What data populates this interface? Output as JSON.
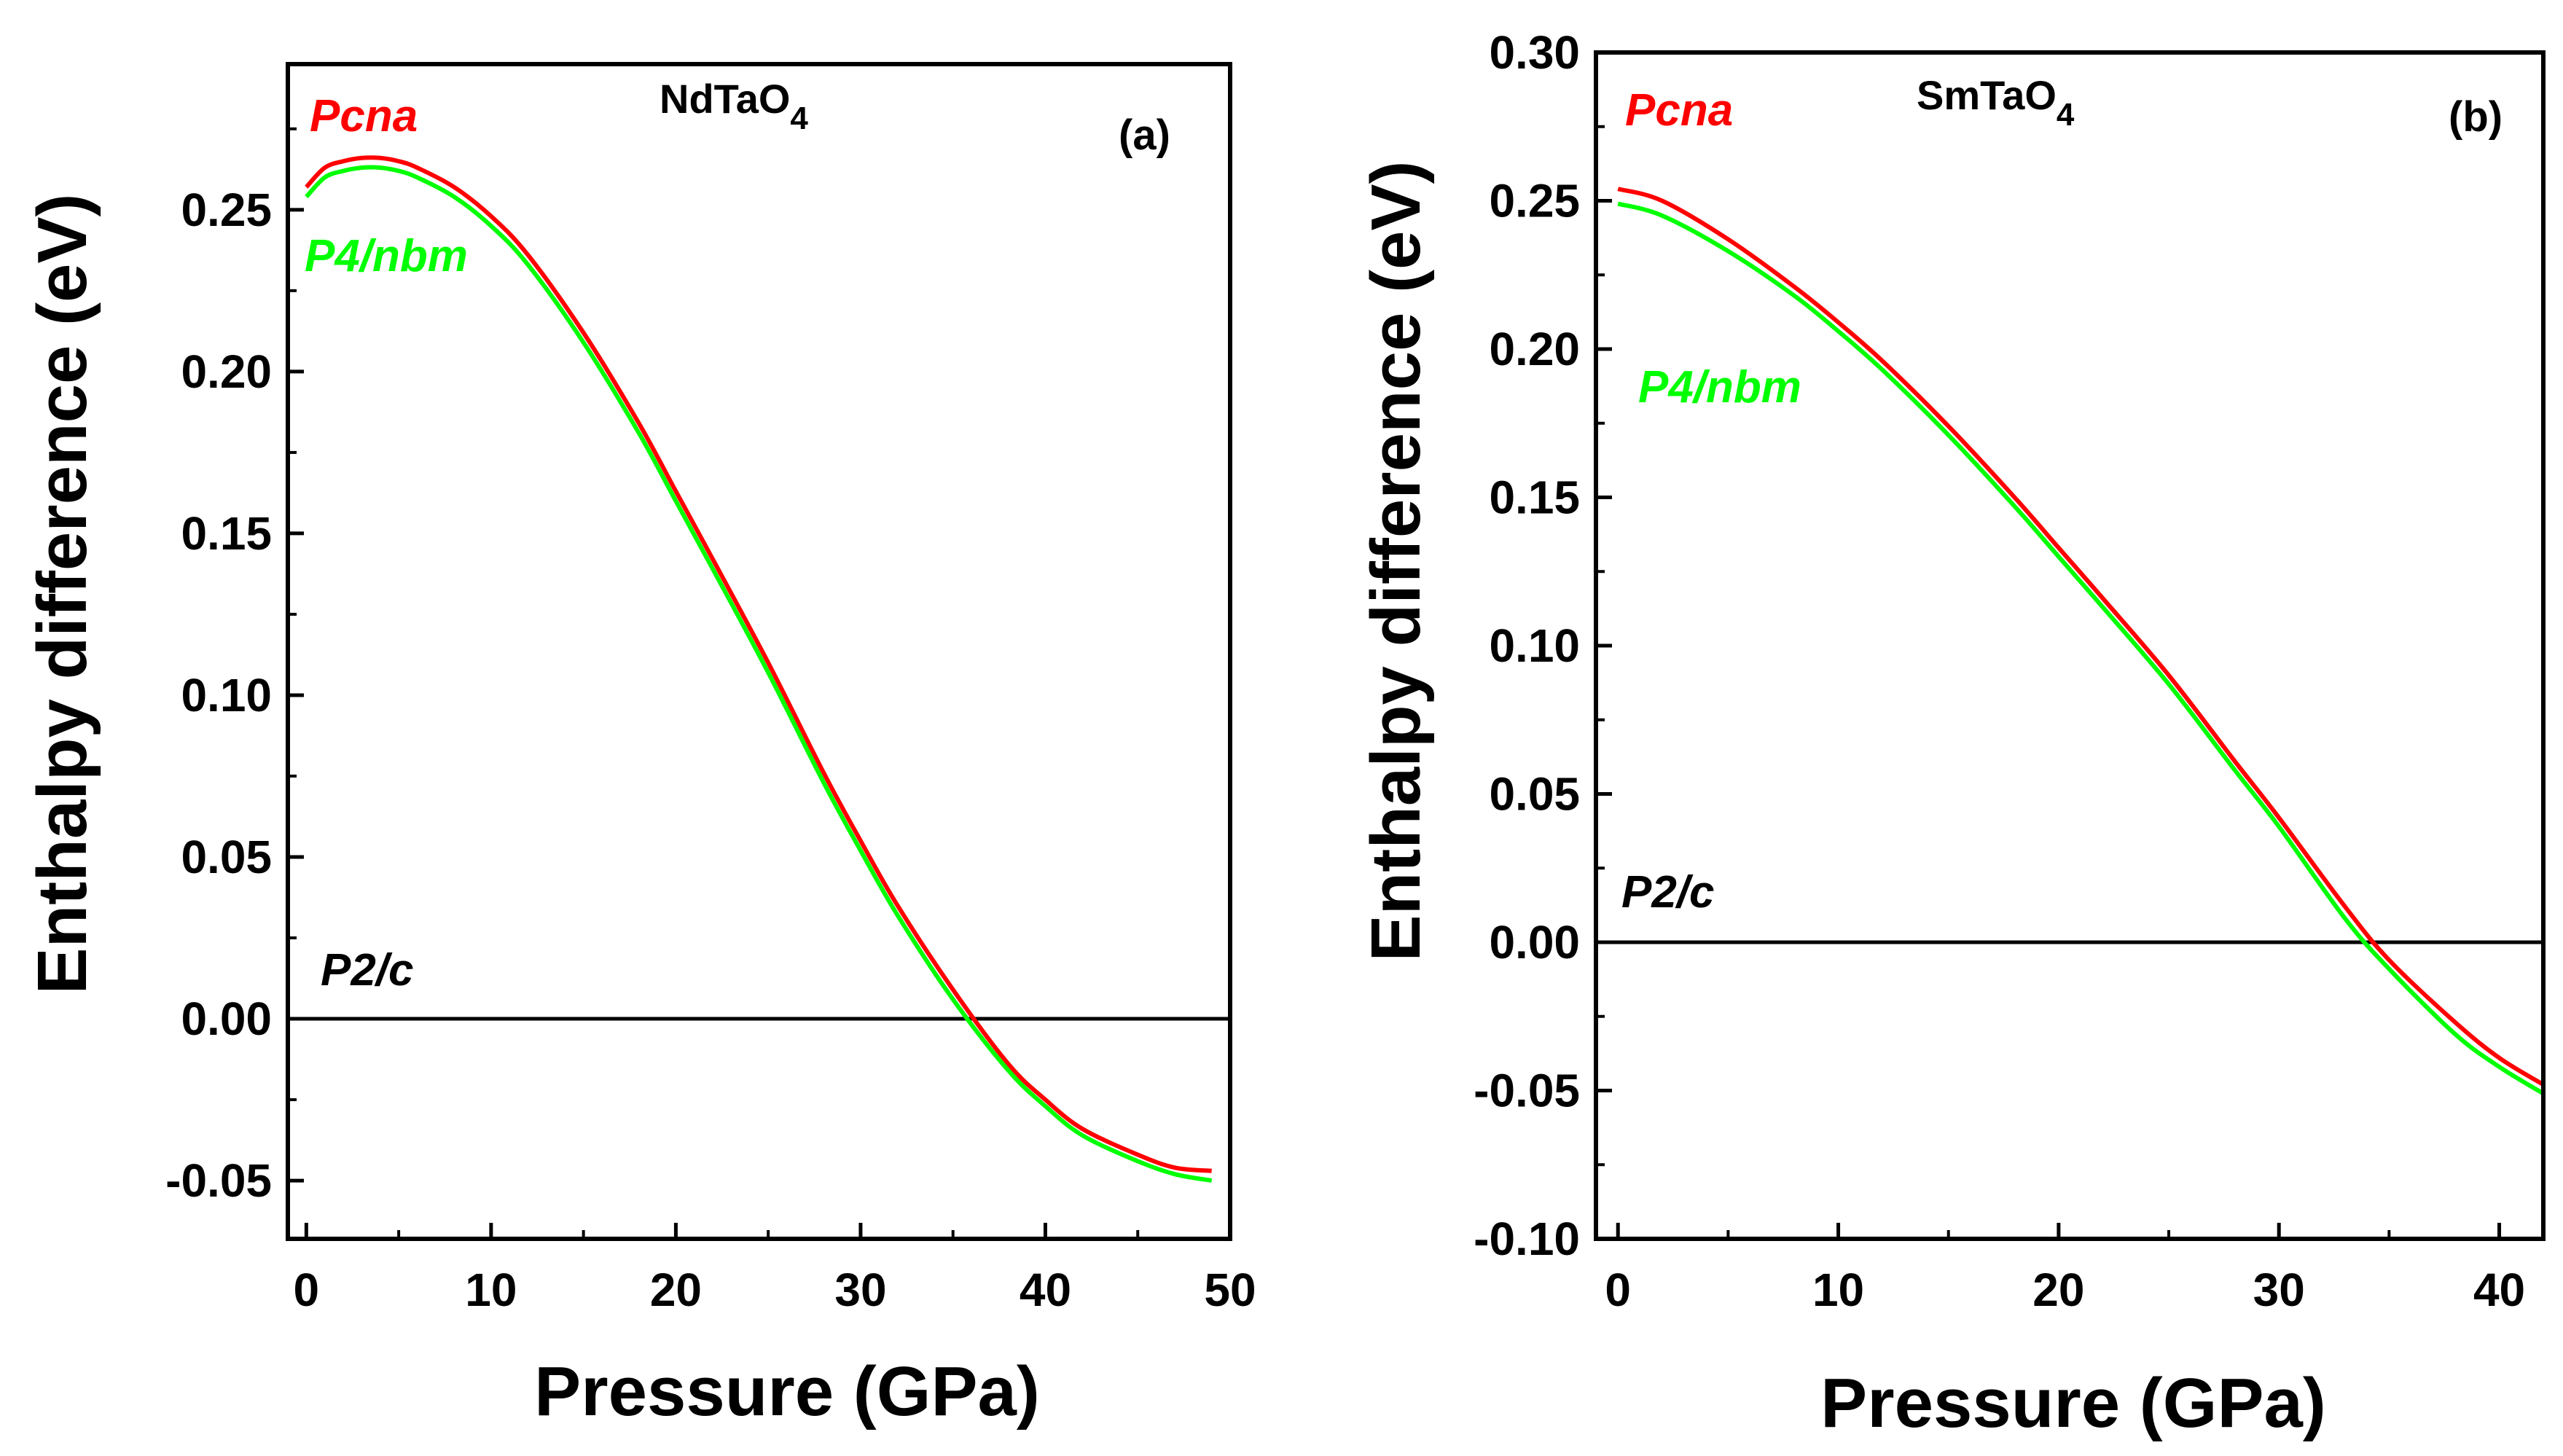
{
  "figure": {
    "description_label": ""
  },
  "chart_data": [
    {
      "type": "line",
      "panel_label": "(a)",
      "compound": "NdTaO",
      "compound_subscript": "4",
      "xlabel": "Pressure (GPa)",
      "ylabel": "Enthalpy difference (eV)",
      "xlim": [
        -1,
        50
      ],
      "ylim": [
        -0.068,
        0.295
      ],
      "xticks": [
        0,
        10,
        20,
        30,
        40,
        50
      ],
      "yticks": [
        -0.05,
        0.0,
        0.05,
        0.1,
        0.15,
        0.2,
        0.25
      ],
      "ytick_labels": [
        "-0.05",
        "0.00",
        "0.05",
        "0.10",
        "0.15",
        "0.20",
        "0.25"
      ],
      "reference_label": "P2/c",
      "series": [
        {
          "name": "Pcna",
          "color": "#ff0000",
          "x": [
            0,
            1,
            2,
            3,
            4,
            5,
            6,
            8,
            10,
            12,
            15,
            18,
            20,
            22,
            25,
            28,
            30,
            32,
            35,
            38,
            40,
            42,
            45,
            47,
            49
          ],
          "y": [
            0.257,
            0.263,
            0.265,
            0.266,
            0.266,
            0.265,
            0.263,
            0.257,
            0.248,
            0.236,
            0.212,
            0.184,
            0.163,
            0.142,
            0.11,
            0.076,
            0.055,
            0.035,
            0.009,
            -0.014,
            -0.025,
            -0.034,
            -0.042,
            -0.046,
            -0.047
          ]
        },
        {
          "name": "P4/nbm",
          "color": "#00ff00",
          "x": [
            0,
            1,
            2,
            3,
            4,
            5,
            6,
            8,
            10,
            12,
            15,
            18,
            20,
            22,
            25,
            28,
            30,
            32,
            35,
            38,
            40,
            42,
            45,
            47,
            49
          ],
          "y": [
            0.254,
            0.26,
            0.262,
            0.263,
            0.263,
            0.262,
            0.26,
            0.254,
            0.245,
            0.233,
            0.209,
            0.181,
            0.16,
            0.139,
            0.107,
            0.073,
            0.052,
            0.032,
            0.006,
            -0.016,
            -0.027,
            -0.036,
            -0.044,
            -0.048,
            -0.05
          ]
        }
      ]
    },
    {
      "type": "line",
      "panel_label": "(b)",
      "compound": "SmTaO",
      "compound_subscript": "4",
      "xlabel": "Pressure (GPa)",
      "ylabel": "Enthalpy difference (eV)",
      "xlim": [
        -1,
        42
      ],
      "ylim": [
        -0.1,
        0.3
      ],
      "xticks": [
        0,
        10,
        20,
        30,
        40
      ],
      "yticks": [
        -0.1,
        -0.05,
        0.0,
        0.05,
        0.1,
        0.15,
        0.2,
        0.25,
        0.3
      ],
      "ytick_labels": [
        "-0.10",
        "-0.05",
        "0.00",
        "0.05",
        "0.10",
        "0.15",
        "0.20",
        "0.25",
        "0.30"
      ],
      "reference_label": "P2/c",
      "series": [
        {
          "name": "Pcna",
          "color": "#ff0000",
          "x": [
            0,
            2,
            5,
            8,
            10,
            12,
            15,
            18,
            20,
            22,
            25,
            28,
            30,
            33,
            35,
            38,
            40,
            42
          ],
          "y": [
            0.254,
            0.25,
            0.237,
            0.221,
            0.209,
            0.196,
            0.174,
            0.15,
            0.133,
            0.116,
            0.09,
            0.061,
            0.042,
            0.012,
            -0.006,
            -0.027,
            -0.039,
            -0.048
          ]
        },
        {
          "name": "P4/nbm",
          "color": "#00ff00",
          "x": [
            0,
            2,
            5,
            8,
            10,
            12,
            15,
            18,
            20,
            22,
            25,
            28,
            30,
            33,
            35,
            38,
            40,
            42
          ],
          "y": [
            0.249,
            0.245,
            0.233,
            0.218,
            0.206,
            0.193,
            0.171,
            0.147,
            0.13,
            0.113,
            0.087,
            0.058,
            0.039,
            0.008,
            -0.009,
            -0.031,
            -0.042,
            -0.051
          ]
        }
      ]
    }
  ]
}
